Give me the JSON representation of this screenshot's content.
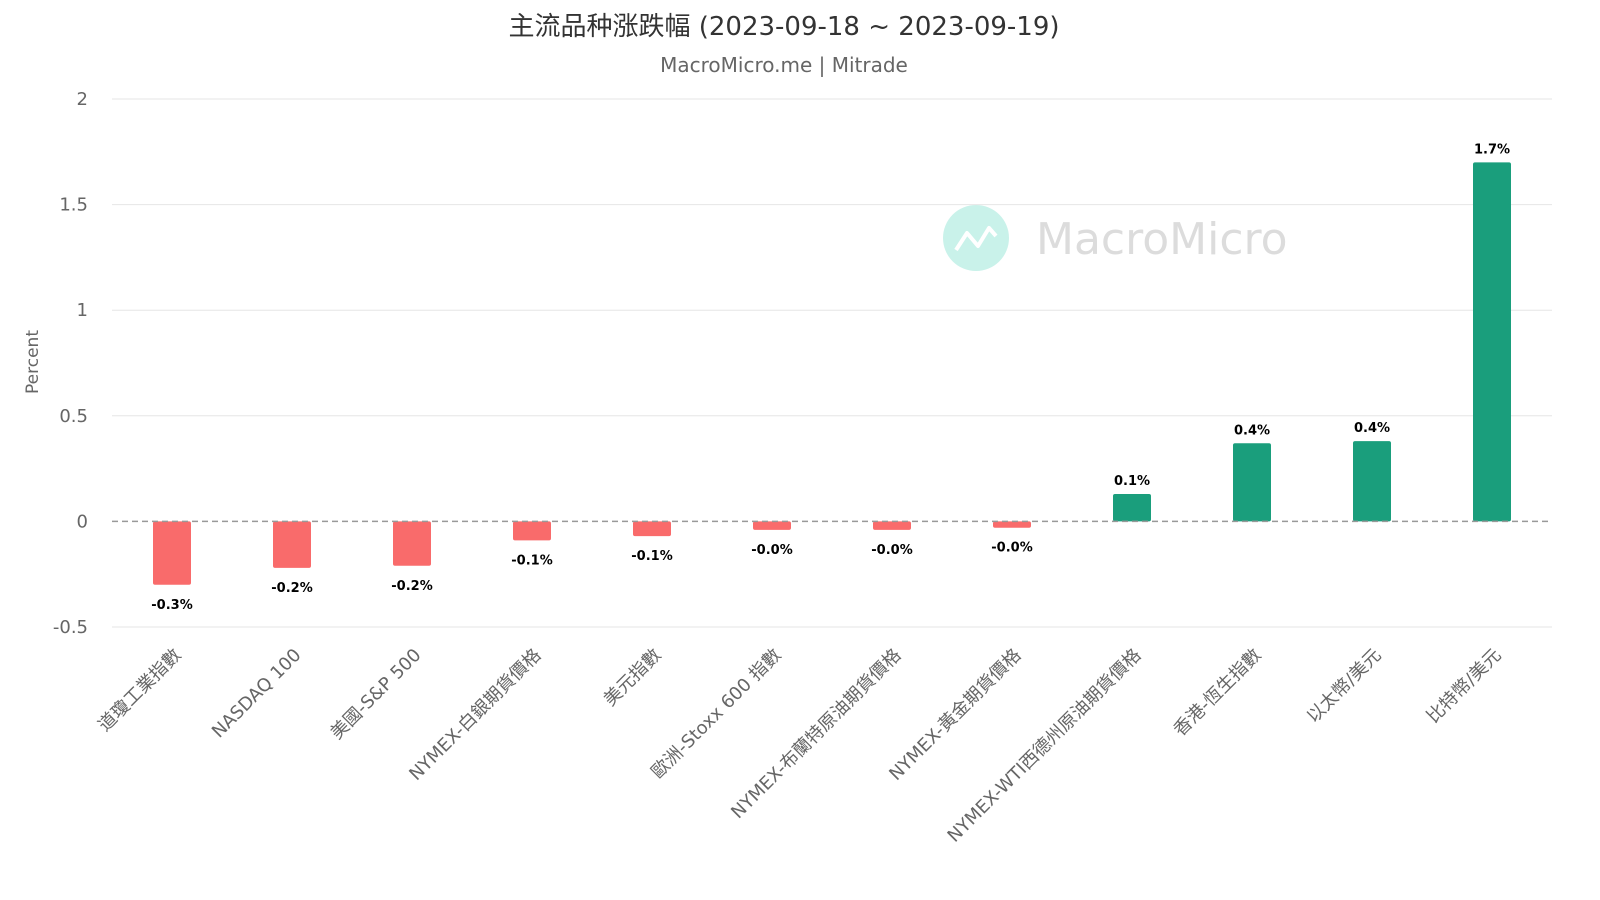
{
  "chart_data": {
    "type": "bar",
    "title": "主流品种涨跌幅 (2023-09-18 ~ 2023-09-19)",
    "subtitle": "MacroMicro.me | Mitrade",
    "ylabel": "Percent",
    "xlabel": "",
    "ylim": [
      -0.5,
      2
    ],
    "yticks": [
      2,
      1.5,
      1,
      0.5,
      0,
      -0.5
    ],
    "ytick_labels": [
      "2",
      "1.5",
      "1",
      "0.5",
      "0",
      "-0.5"
    ],
    "grid": true,
    "categories": [
      "道瓊工業指數",
      "NASDAQ 100",
      "美國-S&P 500",
      "NYMEX-白銀期貨價格",
      "美元指數",
      "歐洲-Stoxx 600 指數",
      "NYMEX-布蘭特原油期貨價格",
      "NYMEX-黃金期貨價格",
      "NYMEX-WTI西德州原油期貨價格",
      "香港-恆生指數",
      "以太幣/美元",
      "比特幣/美元"
    ],
    "values": [
      -0.3,
      -0.22,
      -0.21,
      -0.09,
      -0.07,
      -0.04,
      -0.04,
      -0.03,
      0.13,
      0.37,
      0.38,
      1.7
    ],
    "data_labels": [
      "-0.3%",
      "-0.2%",
      "-0.2%",
      "-0.1%",
      "-0.1%",
      "-0.0%",
      "-0.0%",
      "-0.0%",
      "0.1%",
      "0.4%",
      "0.4%",
      "1.7%"
    ],
    "colors": {
      "positive": "#1a9e7c",
      "negative": "#f96b6b"
    }
  },
  "watermark": {
    "text": "MacroMicro",
    "icon": "macromicro-logo-icon",
    "icon_color": "#c9f2ea"
  }
}
